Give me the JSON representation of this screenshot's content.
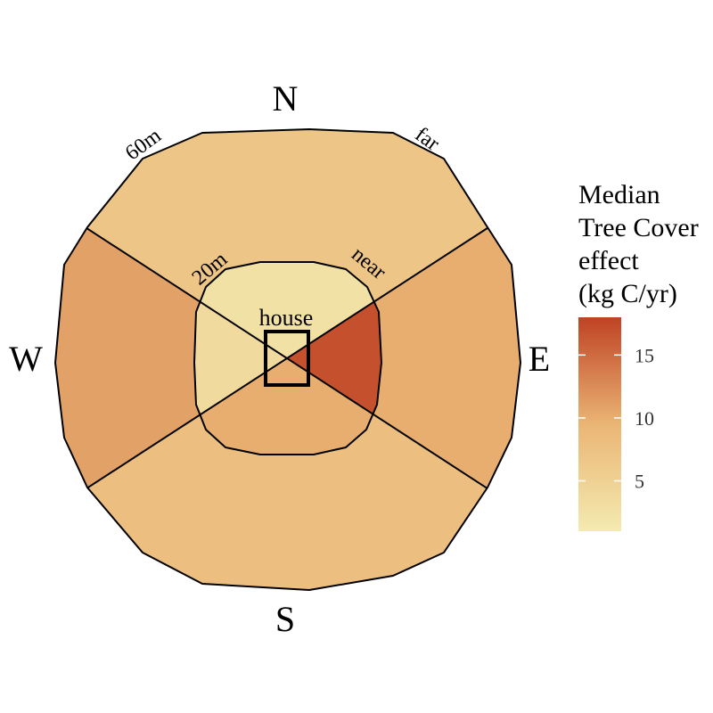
{
  "chart_data": {
    "type": "polar-sector",
    "title": "",
    "compass": {
      "north": "N",
      "south": "S",
      "east": "E",
      "west": "W"
    },
    "ring_labels": {
      "outer_distance": "60m",
      "outer_name": "far",
      "inner_distance": "20m",
      "inner_name": "near"
    },
    "center_label": "house",
    "rings": [
      "near",
      "far"
    ],
    "directions": [
      "N",
      "E",
      "S",
      "W"
    ],
    "values": {
      "near": {
        "N": 2.5,
        "E": 17.0,
        "S": 10.0,
        "W": 3.5
      },
      "far": {
        "N": 7.0,
        "E": 10.0,
        "S": 8.0,
        "W": 11.0
      }
    },
    "legend": {
      "title": [
        "Median",
        "Tree Cover",
        "effect",
        "(kg C/yr)"
      ],
      "ticks": [
        5,
        10,
        15
      ],
      "range": [
        1,
        18
      ],
      "colors": [
        "#f4eab0",
        "#eab574",
        "#bf4224"
      ],
      "placement": "right"
    }
  }
}
